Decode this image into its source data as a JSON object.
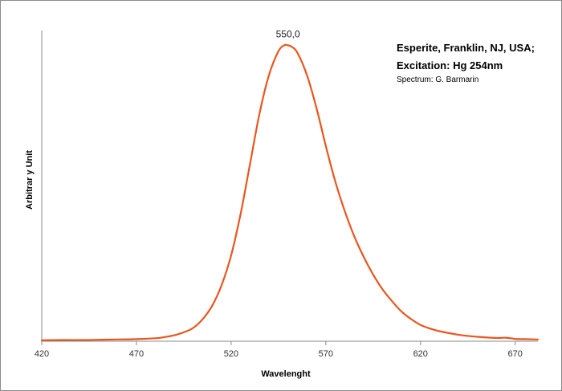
{
  "chart_data": {
    "type": "line",
    "xlabel": "Wavelenght",
    "ylabel": "Arbitrar y Unit",
    "xlim": [
      420,
      682
    ],
    "ylim": [
      0,
      1.05
    ],
    "x_ticks": [
      420,
      470,
      520,
      570,
      620,
      670
    ],
    "x_tick_labels": [
      "420",
      "470",
      "520",
      "570",
      "620",
      "670"
    ],
    "y_ticks_shown": false,
    "grid": false,
    "annotation": {
      "text": "550,0",
      "x": 550,
      "y": 1.0
    },
    "info_text": [
      "Esperite, Franklin, NJ, USA;",
      "Excitation:  Hg 254nm",
      "Spectrum: G. Barmarin"
    ],
    "series": [
      {
        "color": "#e8561e",
        "x": [
          420,
          430,
          440,
          450,
          460,
          470,
          480,
          485,
          490,
          495,
          500,
          505,
          510,
          515,
          520,
          525,
          530,
          535,
          540,
          545,
          548,
          550,
          552,
          555,
          560,
          565,
          570,
          575,
          580,
          585,
          590,
          595,
          600,
          605,
          610,
          615,
          620,
          625,
          630,
          640,
          650,
          660,
          665,
          670,
          675,
          682
        ],
        "y": [
          0.003,
          0.004,
          0.004,
          0.005,
          0.006,
          0.007,
          0.01,
          0.014,
          0.02,
          0.03,
          0.045,
          0.075,
          0.12,
          0.19,
          0.29,
          0.43,
          0.6,
          0.77,
          0.9,
          0.98,
          1.0,
          1.0,
          0.995,
          0.975,
          0.9,
          0.79,
          0.66,
          0.54,
          0.44,
          0.355,
          0.285,
          0.225,
          0.175,
          0.135,
          0.1,
          0.075,
          0.055,
          0.043,
          0.034,
          0.022,
          0.015,
          0.011,
          0.012,
          0.008,
          0.007,
          0.006
        ]
      }
    ]
  }
}
